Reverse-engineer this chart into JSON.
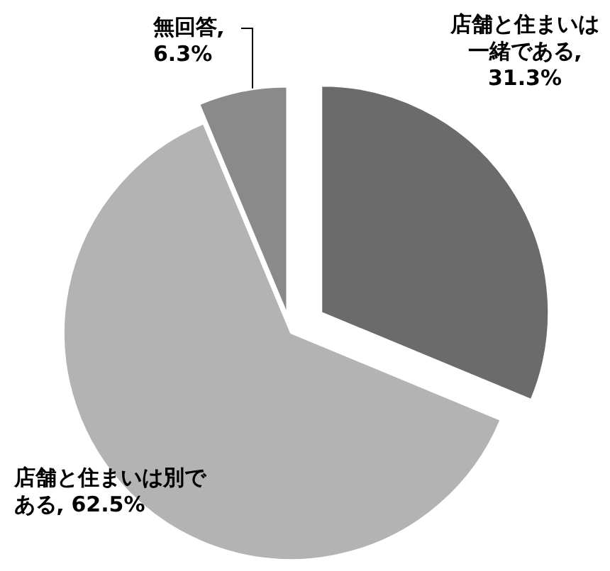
{
  "chart_data": {
    "type": "pie",
    "categories": [
      "店舗と住まいは一緒である",
      "店舗と住まいは別である",
      "無回答"
    ],
    "values": [
      31.3,
      62.5,
      6.3
    ],
    "value_labels": [
      "31.3%",
      "62.5%",
      "6.3%"
    ],
    "colors": [
      "#6b6b6b",
      "#b3b3b3",
      "#8a8a8a"
    ]
  }
}
